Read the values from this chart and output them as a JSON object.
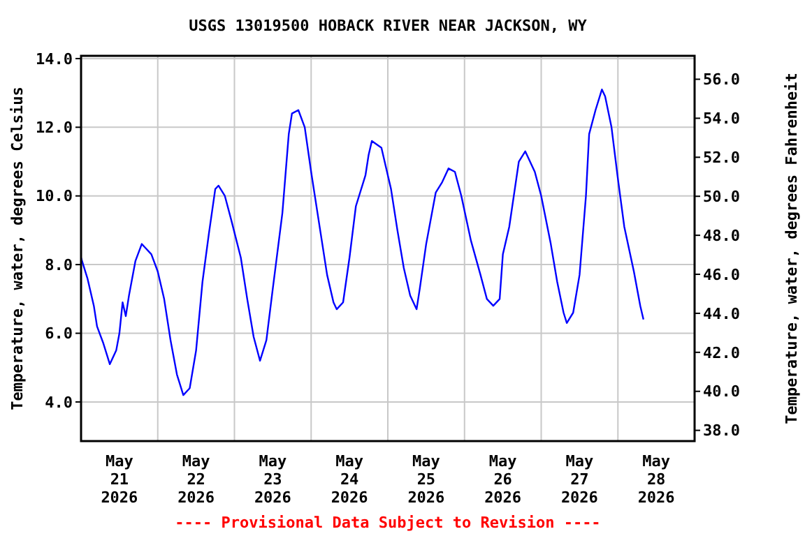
{
  "chart_data": {
    "type": "line",
    "title": "USGS 13019500 HOBACK RIVER NEAR JACKSON, WY",
    "ylabel": "Temperature, water, degrees Celsius",
    "y2label": "Temperature, water, degrees Fahrenheit",
    "annotations": [
      "---- Provisional Data Subject to Revision ----"
    ],
    "xlim": [
      "2026-05-20T12:00",
      "2026-05-28T12:00"
    ],
    "xticks": [
      {
        "value": "2026-05-21",
        "label": "May\n21\n2026"
      },
      {
        "value": "2026-05-21T12:00",
        "label": null
      },
      {
        "value": "2026-05-22",
        "label": "May\n22\n2026"
      },
      {
        "value": "2026-05-22T12:00",
        "label": null
      },
      {
        "value": "2026-05-23",
        "label": "May\n23\n2026"
      },
      {
        "value": "2026-05-23T12:00",
        "label": null
      },
      {
        "value": "2026-05-24",
        "label": "May\n24\n2026"
      },
      {
        "value": "2026-05-24T12:00",
        "label": null
      },
      {
        "value": "2026-05-25",
        "label": "May\n25\n2026"
      },
      {
        "value": "2026-05-25T12:00",
        "label": null
      },
      {
        "value": "2026-05-26",
        "label": "May\n26\n2026"
      },
      {
        "value": "2026-05-26T12:00",
        "label": null
      },
      {
        "value": "2026-05-27",
        "label": "May\n27\n2026"
      },
      {
        "value": "2026-05-27T12:00",
        "label": null
      },
      {
        "value": "2026-05-28",
        "label": "May\n28\n2026"
      }
    ],
    "ylim": [
      2.86,
      14.08
    ],
    "yticks": [
      {
        "value": 4,
        "label": "4.0"
      },
      {
        "value": 6,
        "label": "6.0"
      },
      {
        "value": 8,
        "label": "8.0"
      },
      {
        "value": 10,
        "label": "10.0"
      },
      {
        "value": 12,
        "label": "12.0"
      },
      {
        "value": 14,
        "label": "14.0"
      }
    ],
    "y2lim": [
      37.45,
      57.2
    ],
    "y2ticks": [
      {
        "value": 38,
        "label": "38.0"
      },
      {
        "value": 40,
        "label": "40.0"
      },
      {
        "value": 42,
        "label": "42.0"
      },
      {
        "value": 44,
        "label": "44.0"
      },
      {
        "value": 46,
        "label": "46.0"
      },
      {
        "value": 48,
        "label": "48.0"
      },
      {
        "value": 50,
        "label": "50.0"
      },
      {
        "value": 52,
        "label": "52.0"
      },
      {
        "value": 54,
        "label": "54.0"
      },
      {
        "value": 56,
        "label": "56.0"
      }
    ],
    "grid": true,
    "marker": "none",
    "line_style": "solid",
    "series": [
      {
        "color": "#0000ff",
        "x": [
          "2026-05-20T12:00",
          "2026-05-20T14:00",
          "2026-05-20T16:00",
          "2026-05-20T17:00",
          "2026-05-20T19:00",
          "2026-05-20T21:00",
          "2026-05-20T23:00",
          "2026-05-21T00:00",
          "2026-05-21T01:00",
          "2026-05-21T02:00",
          "2026-05-21T03:00",
          "2026-05-21T05:00",
          "2026-05-21T07:00",
          "2026-05-21T08:00",
          "2026-05-21T10:00",
          "2026-05-21T12:00",
          "2026-05-21T14:00",
          "2026-05-21T16:00",
          "2026-05-21T18:00",
          "2026-05-21T20:00",
          "2026-05-21T22:00",
          "2026-05-22T00:00",
          "2026-05-22T02:00",
          "2026-05-22T04:00",
          "2026-05-22T06:00",
          "2026-05-22T07:00",
          "2026-05-22T09:00",
          "2026-05-22T11:00",
          "2026-05-22T14:00",
          "2026-05-22T16:00",
          "2026-05-22T18:00",
          "2026-05-22T20:00",
          "2026-05-22T22:00",
          "2026-05-23T00:00",
          "2026-05-23T03:00",
          "2026-05-23T05:00",
          "2026-05-23T06:00",
          "2026-05-23T08:00",
          "2026-05-23T10:00",
          "2026-05-23T12:00",
          "2026-05-23T15:00",
          "2026-05-23T17:00",
          "2026-05-23T19:00",
          "2026-05-23T20:00",
          "2026-05-23T22:00",
          "2026-05-24T00:00",
          "2026-05-24T02:00",
          "2026-05-24T05:00",
          "2026-05-24T06:00",
          "2026-05-24T07:00",
          "2026-05-24T10:00",
          "2026-05-24T13:00",
          "2026-05-24T15:00",
          "2026-05-24T17:00",
          "2026-05-24T19:00",
          "2026-05-24T21:00",
          "2026-05-24T22:00",
          "2026-05-25T00:00",
          "2026-05-25T03:00",
          "2026-05-25T05:00",
          "2026-05-25T07:00",
          "2026-05-25T09:00",
          "2026-05-25T11:00",
          "2026-05-25T14:00",
          "2026-05-25T17:00",
          "2026-05-25T19:00",
          "2026-05-25T21:00",
          "2026-05-25T23:00",
          "2026-05-26T00:00",
          "2026-05-26T02:00",
          "2026-05-26T05:00",
          "2026-05-26T07:00",
          "2026-05-26T10:00",
          "2026-05-26T12:00",
          "2026-05-26T15:00",
          "2026-05-26T17:00",
          "2026-05-26T19:00",
          "2026-05-26T20:00",
          "2026-05-26T22:00",
          "2026-05-27T00:00",
          "2026-05-27T02:00",
          "2026-05-27T03:00",
          "2026-05-27T05:00",
          "2026-05-27T07:00",
          "2026-05-27T08:00",
          "2026-05-27T10:00",
          "2026-05-27T12:00",
          "2026-05-27T14:00",
          "2026-05-27T17:00",
          "2026-05-27T19:00",
          "2026-05-27T20:00"
        ],
        "values": [
          8.2,
          7.6,
          6.8,
          6.2,
          5.7,
          5.1,
          5.5,
          6.0,
          6.9,
          6.5,
          7.1,
          8.1,
          8.6,
          8.5,
          8.3,
          7.8,
          7.0,
          5.8,
          4.8,
          4.2,
          4.4,
          5.5,
          7.5,
          8.9,
          10.2,
          10.3,
          10.0,
          9.3,
          8.2,
          7.0,
          5.9,
          5.2,
          5.8,
          7.3,
          9.5,
          11.8,
          12.4,
          12.5,
          12.0,
          10.7,
          8.9,
          7.7,
          6.9,
          6.7,
          6.9,
          8.2,
          9.7,
          10.6,
          11.2,
          11.6,
          11.4,
          10.2,
          9.0,
          7.9,
          7.1,
          6.7,
          7.3,
          8.6,
          10.1,
          10.4,
          10.8,
          10.7,
          10.0,
          8.7,
          7.7,
          7.0,
          6.8,
          7.0,
          8.3,
          9.1,
          11.0,
          11.3,
          10.7,
          10.0,
          8.6,
          7.5,
          6.6,
          6.3,
          6.6,
          7.7,
          10.0,
          11.8,
          12.5,
          13.1,
          12.9,
          12.0,
          10.5,
          9.1,
          7.8,
          6.8,
          6.4
        ]
      }
    ]
  }
}
